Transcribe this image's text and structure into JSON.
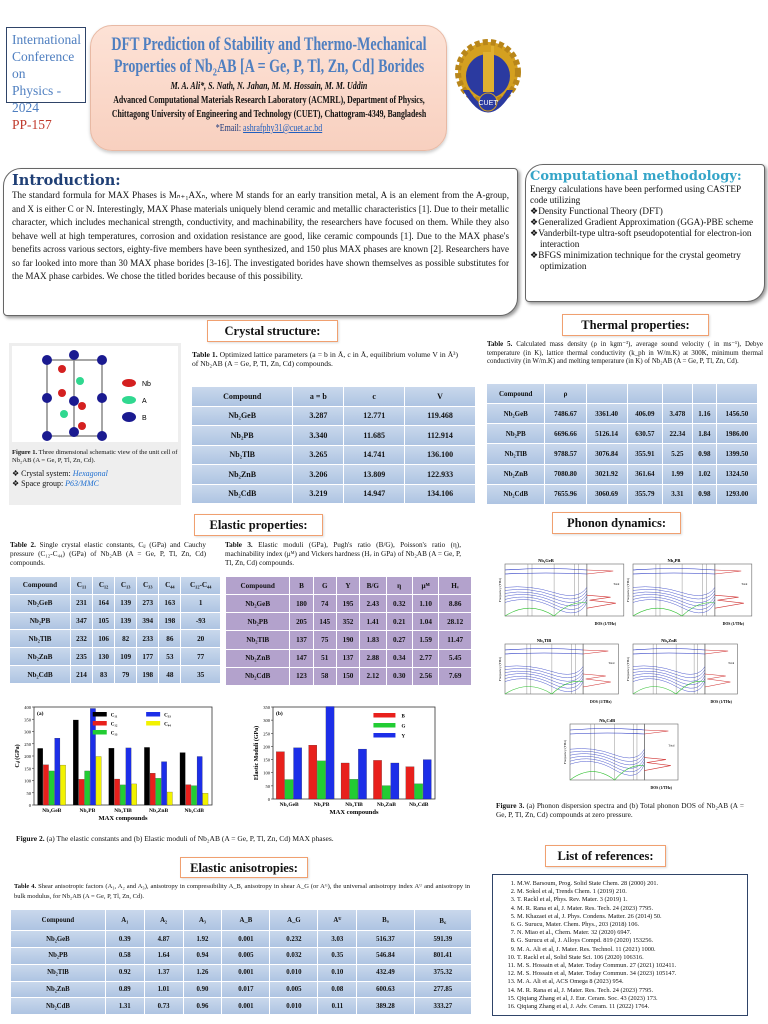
{
  "header": {
    "conference": [
      "International",
      "Conference  on",
      "Physics - 2024"
    ],
    "poster_id": "PP-157",
    "title_line1": "DFT Prediction of Stability and Thermo-Mechanical",
    "title_line2": "Properties of Nb₂AB [A = Ge, P, Tl, Zn, Cd] Borides",
    "authors": "M. A. Ali*, S. Nath, N. Jahan, M. M. Hossain, M. M. Uddin",
    "affiliation1": "Advanced Computational Materials Research Laboratory (ACMRL), Department of Physics,",
    "affiliation2": "Chittagong University of Engineering and Technology (CUET), Chattogram-4349, Bangladesh",
    "email_label": "*Email: ",
    "email": "ashrafphy31@cuet.ac.bd",
    "logo_text": "CUET"
  },
  "introduction": {
    "heading": "Introduction:",
    "text": "The standard formula for MAX Phases is Mₙ₊₁AXₙ, where M stands for an early transition metal, A is an element from the A-group, and X is either C or N. Interestingly, MAX Phase materials uniquely blend ceramic and metallic characteristics [1]. Due to their metallic character, which includes mechanical strength, conductivity, and machinability, the researchers have focused on them. While they also behave well at high temperatures, corrosion and oxidation resistance are good, like ceramic compounds [1]. Due to the MAX phase's benefits across various sectors, eighty-five members have been synthesized, and 150 plus MAX phases are known [2]. Researchers have so far looked into more than 30 MAX phase borides [3-16]. The investigated borides have shown themselves as possible substitutes for the MAX phase carbides. We chose the titled borides because of this possibility."
  },
  "methodology": {
    "heading": "Computational methodology:",
    "intro": "Energy calculations have been performed using CASTEP code utilizing",
    "items": [
      "❖Density Functional Theory (DFT)",
      "❖Generalized Gradient Approximation (GGA)-PBE scheme",
      "❖Vanderbilt-type ultra-soft pseudopotential for electron-ion interaction",
      "❖BFGS minimization technique for the crystal geometry optimization"
    ]
  },
  "crystal": {
    "heading": "Crystal structure:",
    "legend": [
      "Nb",
      "A",
      "B"
    ],
    "legend_colors": [
      "#d42020",
      "#30d890",
      "#1a1a90"
    ],
    "figure_caption_label": "Figure 1.",
    "figure_caption": " Three dimensional schematic view of the unit cell of Nb₂AB (A = Ge, P, Tl, Zn, Cd).",
    "system_label": "❖ Crystal system: ",
    "system": "Hexagonal",
    "group_label": "❖ Space group: ",
    "group": "P63/MMC",
    "table_caption_label": "Table 1.",
    "table_caption": " Optimized lattice parameters (a = b in Å, c in Å, equilibrium volume V in Å³) of Nb₂AB (A = Ge, P, Tl, Zn, Cd) compounds.",
    "table": {
      "headers": [
        "Compound",
        "a = b",
        "c",
        "V"
      ],
      "rows": [
        [
          "Nb₂GeB",
          "3.287",
          "12.771",
          "119.468"
        ],
        [
          "Nb₂PB",
          "3.340",
          "11.685",
          "112.914"
        ],
        [
          "Nb₂TlB",
          "3.265",
          "14.741",
          "136.100"
        ],
        [
          "Nb₂ZnB",
          "3.206",
          "13.809",
          "122.933"
        ],
        [
          "Nb₂CdB",
          "3.219",
          "14.947",
          "134.106"
        ]
      ]
    }
  },
  "thermal": {
    "heading": "Thermal properties:",
    "table_caption_label": "Table 5.",
    "table_caption": " Calculated mass density (ρ in kgm⁻³), average sound velocity ( in ms⁻¹), Debye temperature (in K), lattice thermal conductivity (k_ph in W/m.K) at 300K, minimum thermal conductivity (in W/m.K) and melting temperature (in K) of Nb₂AB (A = Ge, P, Tl, Zn, Cd).",
    "table": {
      "headers": [
        "Compound",
        "ρ",
        "",
        "",
        "",
        "",
        ""
      ],
      "rows": [
        [
          "Nb₂GeB",
          "7486.67",
          "3361.40",
          "406.09",
          "3.478",
          "1.16",
          "1456.50"
        ],
        [
          "Nb₂PB",
          "6696.66",
          "5126.14",
          "630.57",
          "22.34",
          "1.84",
          "1986.00"
        ],
        [
          "Nb₂TlB",
          "9788.57",
          "3076.84",
          "355.91",
          "5.25",
          "0.98",
          "1399.50"
        ],
        [
          "Nb₂ZnB",
          "7080.80",
          "3021.92",
          "361.64",
          "1.99",
          "1.02",
          "1324.50"
        ],
        [
          "Nb₂CdB",
          "7655.96",
          "3060.69",
          "355.79",
          "3.31",
          "0.98",
          "1293.00"
        ]
      ]
    }
  },
  "elastic": {
    "heading": "Elastic properties:",
    "table2_caption_label": "Table 2.",
    "table2_caption": " Single crystal elastic constants, Cᵢⱼ (GPa) and Cauchy pressure (C₁₂-C₄₄) (GPa) of Nb₂AB (A = Ge, P, Tl, Zn, Cd) compounds.",
    "table2": {
      "headers": [
        "Compound",
        "C₁₁",
        "C₁₂",
        "C₁₃",
        "C₃₃",
        "C₄₄",
        "C₁₂-C₄₄"
      ],
      "rows": [
        [
          "Nb₂GeB",
          "231",
          "164",
          "139",
          "273",
          "163",
          "1"
        ],
        [
          "Nb₂PB",
          "347",
          "105",
          "139",
          "394",
          "198",
          "-93"
        ],
        [
          "Nb₂TlB",
          "232",
          "106",
          "82",
          "233",
          "86",
          "20"
        ],
        [
          "Nb₂ZnB",
          "235",
          "130",
          "109",
          "177",
          "53",
          "77"
        ],
        [
          "Nb₂CdB",
          "214",
          "83",
          "79",
          "198",
          "48",
          "35"
        ]
      ]
    },
    "table3_caption_label": "Table 3.",
    "table3_caption": " Elastic moduli (GPa), Pugh's ratio (B/G), Poisson's ratio (η), machinability index (μᴹ) and Vickers hardness (Hᵥ in GPa) of Nb₂AB (A = Ge, P, Tl, Zn, Cd) compounds.",
    "table3": {
      "headers": [
        "Compound",
        "B",
        "G",
        "Y",
        "B/G",
        "η",
        "μᴹ",
        "Hᵥ"
      ],
      "rows": [
        [
          "Nb₂GeB",
          "180",
          "74",
          "195",
          "2.43",
          "0.32",
          "1.10",
          "8.86"
        ],
        [
          "Nb₂PB",
          "205",
          "145",
          "352",
          "1.41",
          "0.21",
          "1.04",
          "28.12"
        ],
        [
          "Nb₂TlB",
          "137",
          "75",
          "190",
          "1.83",
          "0.27",
          "1.59",
          "11.47"
        ],
        [
          "Nb₂ZnB",
          "147",
          "51",
          "137",
          "2.88",
          "0.34",
          "2.77",
          "5.45"
        ],
        [
          "Nb₂CdB",
          "123",
          "58",
          "150",
          "2.12",
          "0.30",
          "2.56",
          "7.69"
        ]
      ]
    },
    "figure_caption_label": "Figure 2.",
    "figure_caption": " (a) The elastic constants and (b) Elastic moduli of Nb₂AB (A = Ge, P, Tl, Zn, Cd) MAX phases."
  },
  "chart_data": [
    {
      "type": "bar",
      "panel": "(a)",
      "categories": [
        "Nb₂GeB",
        "Nb₂PB",
        "Nb₂TlB",
        "Nb₂ZnB",
        "Nb₂CdB"
      ],
      "xlabel": "MAX compounds",
      "ylabel": "Cᵢⱼ (GPa)",
      "ylim": [
        0,
        400
      ],
      "yticks": [
        0,
        50,
        100,
        150,
        200,
        250,
        300,
        350,
        400
      ],
      "legend": "top",
      "series": [
        {
          "name": "C₁₁",
          "color": "#000000",
          "values": [
            231,
            347,
            232,
            235,
            214
          ]
        },
        {
          "name": "C₁₂",
          "color": "#e8201c",
          "values": [
            164,
            105,
            106,
            130,
            83
          ]
        },
        {
          "name": "C₁₃",
          "color": "#22cc33",
          "values": [
            139,
            139,
            82,
            109,
            79
          ]
        },
        {
          "name": "C₃₃",
          "color": "#1c2ee8",
          "values": [
            273,
            394,
            233,
            177,
            198
          ]
        },
        {
          "name": "C₄₄",
          "color": "#f2f200",
          "values": [
            163,
            198,
            86,
            53,
            48
          ]
        }
      ]
    },
    {
      "type": "bar",
      "panel": "(b)",
      "categories": [
        "Nb₂GeB",
        "Nb₂PB",
        "Nb₂TlB",
        "Nb₂ZnB",
        "Nb₂CdB"
      ],
      "xlabel": "MAX compounds",
      "ylabel": "Elastic Moduli (GPa)",
      "ylim": [
        0,
        350
      ],
      "yticks": [
        0,
        50,
        100,
        150,
        200,
        250,
        300,
        350
      ],
      "legend": "top-right",
      "series": [
        {
          "name": "B",
          "color": "#e8201c",
          "values": [
            180,
            205,
            137,
            147,
            123
          ]
        },
        {
          "name": "G",
          "color": "#22cc33",
          "values": [
            74,
            145,
            75,
            51,
            58
          ]
        },
        {
          "name": "Y",
          "color": "#1c2ee8",
          "values": [
            195,
            352,
            190,
            137,
            150
          ]
        }
      ]
    }
  ],
  "phonon": {
    "heading": "Phonon dynamics:",
    "plots": [
      "Nb₂GeB",
      "Nb₂PB",
      "Nb₂TlB",
      "Nb₂ZnB",
      "Nb₂CdB"
    ],
    "ylabel": "Frequency (THz)",
    "xlabel": "DOS (1/THz)",
    "legend": "Total",
    "figure_caption_label": "Figure 3.",
    "figure_caption": " (a) Phonon dispersion spectra and (b) Total phonon DOS of Nb₂AB (A = Ge, P, Tl, Zn, Cd) compounds at zero pressure."
  },
  "anisotropy": {
    "heading": "Elastic anisotropies:",
    "table_caption_label": "Table 4.",
    "table_caption": " Shear anisotropic factors (A₁, A₂ and A₃), anisotropy in compressibility A_B, anisotropy in shear A_G (or Aᴳ), the universal anisotropy index Aᵁ and anisotropy in bulk modulus, for Nb₂AB (A = Ge, P, Tl, Zn, Cd).",
    "table": {
      "headers": [
        "Compound",
        "A₁",
        "A₂",
        "A₃",
        "A_B",
        "A_G",
        "Aᵁ",
        "Bₐ",
        "B꜀"
      ],
      "rows": [
        [
          "Nb₂GeB",
          "0.39",
          "4.87",
          "1.92",
          "0.001",
          "0.232",
          "3.03",
          "516.37",
          "591.39"
        ],
        [
          "Nb₂PB",
          "0.58",
          "1.64",
          "0.94",
          "0.005",
          "0.032",
          "0.35",
          "546.84",
          "801.41"
        ],
        [
          "Nb₂TlB",
          "0.92",
          "1.37",
          "1.26",
          "0.001",
          "0.010",
          "0.10",
          "432.49",
          "375.32"
        ],
        [
          "Nb₂ZnB",
          "0.89",
          "1.01",
          "0.90",
          "0.017",
          "0.005",
          "0.08",
          "600.63",
          "277.85"
        ],
        [
          "Nb₂CdB",
          "1.31",
          "0.73",
          "0.96",
          "0.001",
          "0.010",
          "0.11",
          "389.28",
          "333.27"
        ]
      ]
    }
  },
  "references": {
    "heading": "List of references:",
    "items": [
      "M.W. Barsoum, Prog. Solid State Chem. 28 (2000) 201.",
      "M. Sokol et al, Trends Chem. 1 (2019) 210.",
      "T. Rackl et al, Phys. Rev. Mater. 3 (2019) 1.",
      "M. R. Rana et al, J. Mater. Res. Tech. 24 (2023) 7795.",
      "M. Khazaei et al, J. Phys. Condens. Matter. 26 (2014) 50.",
      "G. Surucu, Mater. Chem. Phys., 203 (2018) 106.",
      "N. Miao et al., Chem. Mater. 32 (2020) 6947.",
      "G. Surucu et al, J. Alloys Compd. 819 (2020) 153256.",
      "M. A. Ali et al, J. Mater. Res. Technol. 11 (2021) 1000.",
      "T. Rackl et al, Solid State Sci. 106 (2020) 106316.",
      "M. S. Hossain et al, Mater. Today Commun. 27 (2021) 102411.",
      "M. S. Hossain et al, Mater. Today Commun. 34 (2023) 105147.",
      "M. A. Ali et al, ACS Omega 8 (2023) 954.",
      "M. R. Rana et al, J. Mater. Res. Tech. 24 (2023) 7795.",
      "Qiqiang Zhang et al, J. Eur. Ceram. Soc. 43 (2023) 173.",
      "Qiqiang Zhang et al, J. Adv. Ceram. 11 (2022) 1764."
    ]
  }
}
